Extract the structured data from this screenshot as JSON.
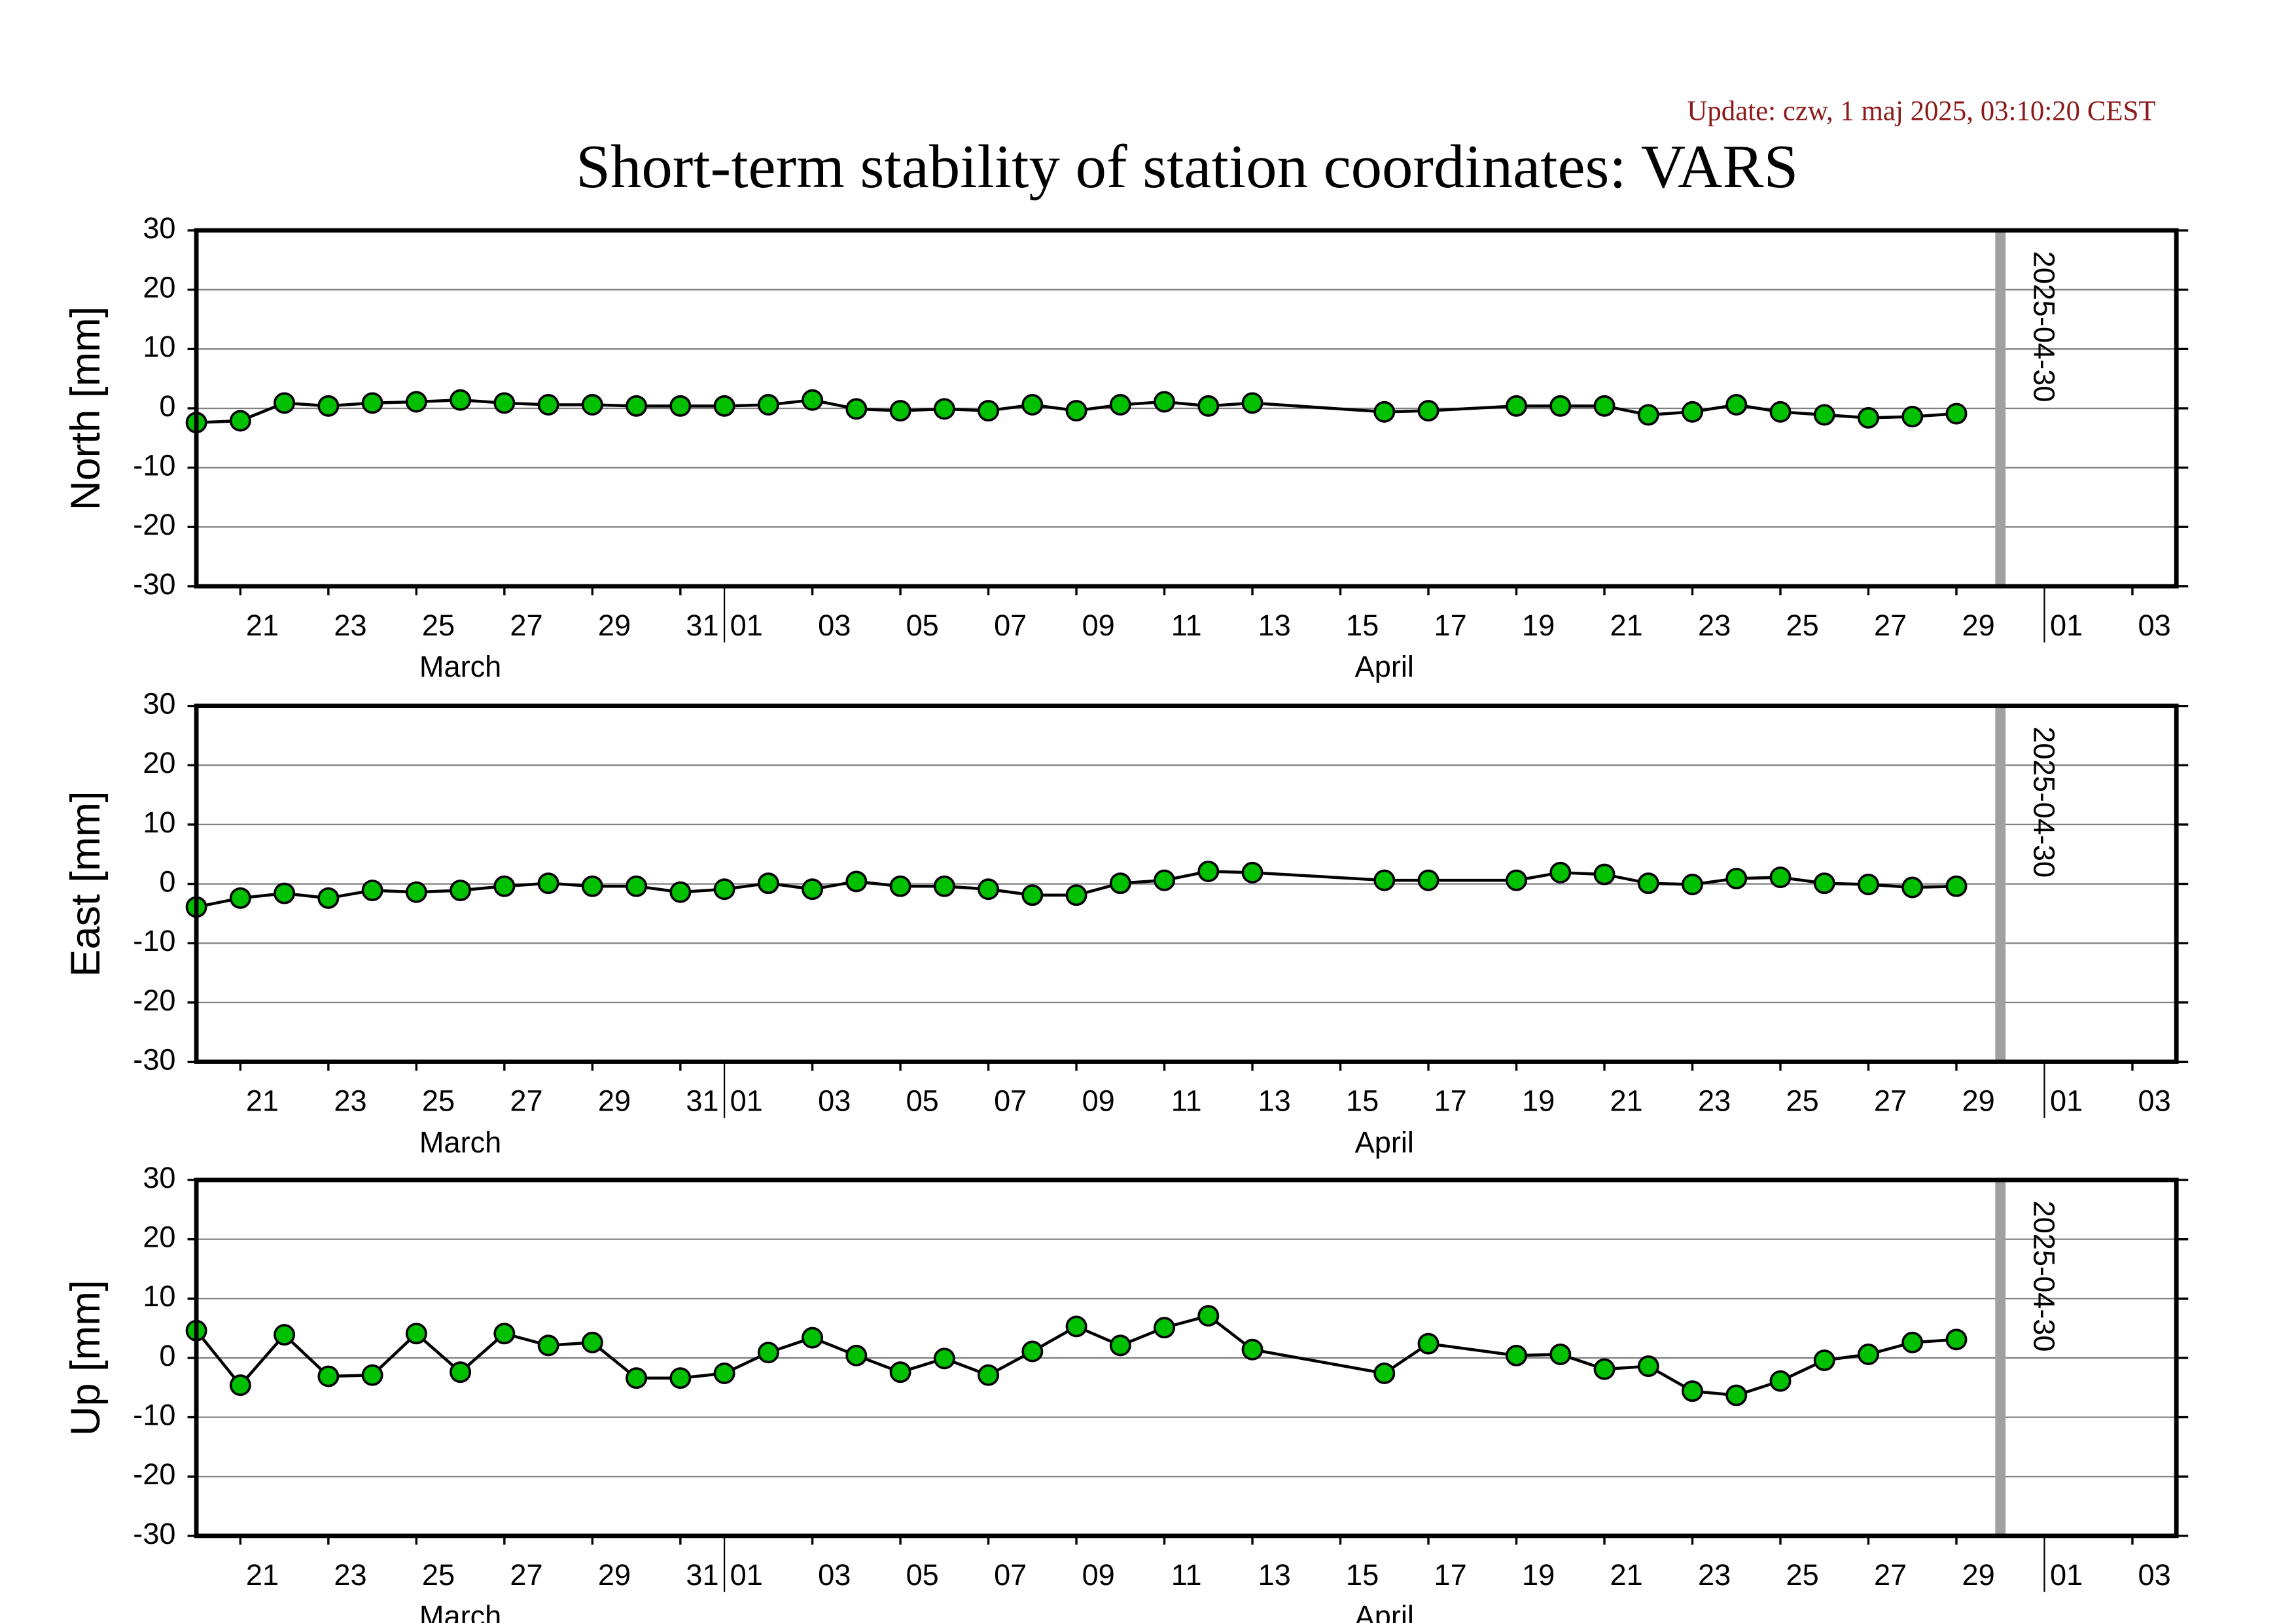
{
  "title": "Short-term stability of station coordinates: VARS",
  "update": "Update: czw, 1 maj 2025, 03:10:20 CEST",
  "chart_data": [
    {
      "type": "line",
      "ylabel": "North [mm]",
      "x": [
        "2025-03-20",
        "2025-03-21",
        "2025-03-22",
        "2025-03-23",
        "2025-03-24",
        "2025-03-25",
        "2025-03-26",
        "2025-03-27",
        "2025-03-28",
        "2025-03-29",
        "2025-03-30",
        "2025-03-31",
        "2025-04-01",
        "2025-04-02",
        "2025-04-03",
        "2025-04-04",
        "2025-04-05",
        "2025-04-06",
        "2025-04-07",
        "2025-04-08",
        "2025-04-09",
        "2025-04-10",
        "2025-04-11",
        "2025-04-12",
        "2025-04-13",
        "2025-04-16",
        "2025-04-17",
        "2025-04-19",
        "2025-04-20",
        "2025-04-21",
        "2025-04-22",
        "2025-04-23",
        "2025-04-24",
        "2025-04-25",
        "2025-04-26",
        "2025-04-27",
        "2025-04-28",
        "2025-04-29"
      ],
      "values": [
        -2.4,
        -2.1,
        0.9,
        0.4,
        0.9,
        1.1,
        1.4,
        0.9,
        0.6,
        0.6,
        0.4,
        0.4,
        0.4,
        0.6,
        1.4,
        -0.1,
        -0.4,
        -0.1,
        -0.4,
        0.6,
        -0.4,
        0.6,
        1.1,
        0.4,
        0.9,
        -0.6,
        -0.4,
        0.4,
        0.4,
        0.4,
        -1.1,
        -0.6,
        0.6,
        -0.6,
        -1.1,
        -1.6,
        -1.4,
        -0.9
      ],
      "color": "#000000",
      "marker_color": "#00c000",
      "xlim": [
        "2025-03-20",
        "2025-05-04"
      ],
      "ylim": [
        -30,
        30
      ],
      "yticks": [
        -30,
        -20,
        -10,
        0,
        10,
        20,
        30
      ],
      "grid": true,
      "xticks": [
        {
          "value": "2025-03-21",
          "label": "21"
        },
        {
          "value": "2025-03-23",
          "label": "23"
        },
        {
          "value": "2025-03-25",
          "label": "25"
        },
        {
          "value": "2025-03-27",
          "label": "27"
        },
        {
          "value": "2025-03-29",
          "label": "29"
        },
        {
          "value": "2025-03-31",
          "label": "31"
        },
        {
          "value": "2025-04-01",
          "label": "01"
        },
        {
          "value": "2025-04-03",
          "label": "03"
        },
        {
          "value": "2025-04-05",
          "label": "05"
        },
        {
          "value": "2025-04-07",
          "label": "07"
        },
        {
          "value": "2025-04-09",
          "label": "09"
        },
        {
          "value": "2025-04-11",
          "label": "11"
        },
        {
          "value": "2025-04-13",
          "label": "13"
        },
        {
          "value": "2025-04-15",
          "label": "15"
        },
        {
          "value": "2025-04-17",
          "label": "17"
        },
        {
          "value": "2025-04-19",
          "label": "19"
        },
        {
          "value": "2025-04-21",
          "label": "21"
        },
        {
          "value": "2025-04-23",
          "label": "23"
        },
        {
          "value": "2025-04-25",
          "label": "25"
        },
        {
          "value": "2025-04-27",
          "label": "27"
        },
        {
          "value": "2025-04-29",
          "label": "29"
        },
        {
          "value": "2025-05-01",
          "label": "01"
        },
        {
          "value": "2025-05-03",
          "label": "03"
        }
      ],
      "months": [
        {
          "value": "2025-03",
          "label": "March"
        },
        {
          "value": "2025-04",
          "label": "April"
        }
      ],
      "vline": "2025-04-30",
      "vline_color": "#a0a0a0"
    },
    {
      "type": "line",
      "ylabel": "East [mm]",
      "x": [
        "2025-03-20",
        "2025-03-21",
        "2025-03-22",
        "2025-03-23",
        "2025-03-24",
        "2025-03-25",
        "2025-03-26",
        "2025-03-27",
        "2025-03-28",
        "2025-03-29",
        "2025-03-30",
        "2025-03-31",
        "2025-04-01",
        "2025-04-02",
        "2025-04-03",
        "2025-04-04",
        "2025-04-05",
        "2025-04-06",
        "2025-04-07",
        "2025-04-08",
        "2025-04-09",
        "2025-04-10",
        "2025-04-11",
        "2025-04-12",
        "2025-04-13",
        "2025-04-16",
        "2025-04-17",
        "2025-04-19",
        "2025-04-20",
        "2025-04-21",
        "2025-04-22",
        "2025-04-23",
        "2025-04-24",
        "2025-04-25",
        "2025-04-26",
        "2025-04-27",
        "2025-04-28",
        "2025-04-29"
      ],
      "values": [
        -3.9,
        -2.4,
        -1.6,
        -2.4,
        -1.1,
        -1.4,
        -1.1,
        -0.4,
        0.1,
        -0.4,
        -0.4,
        -1.4,
        -0.9,
        0.1,
        -0.9,
        0.4,
        -0.4,
        -0.4,
        -0.9,
        -1.9,
        -1.9,
        0.1,
        0.6,
        2.1,
        1.9,
        0.6,
        0.6,
        0.6,
        1.9,
        1.6,
        0.1,
        -0.1,
        0.9,
        1.1,
        0.1,
        -0.1,
        -0.6,
        -0.4
      ],
      "color": "#000000",
      "marker_color": "#00c000",
      "xlim": [
        "2025-03-20",
        "2025-05-04"
      ],
      "ylim": [
        -30,
        30
      ],
      "yticks": [
        -30,
        -20,
        -10,
        0,
        10,
        20,
        30
      ],
      "grid": true,
      "xticks": [
        {
          "value": "2025-03-21",
          "label": "21"
        },
        {
          "value": "2025-03-23",
          "label": "23"
        },
        {
          "value": "2025-03-25",
          "label": "25"
        },
        {
          "value": "2025-03-27",
          "label": "27"
        },
        {
          "value": "2025-03-29",
          "label": "29"
        },
        {
          "value": "2025-03-31",
          "label": "31"
        },
        {
          "value": "2025-04-01",
          "label": "01"
        },
        {
          "value": "2025-04-03",
          "label": "03"
        },
        {
          "value": "2025-04-05",
          "label": "05"
        },
        {
          "value": "2025-04-07",
          "label": "07"
        },
        {
          "value": "2025-04-09",
          "label": "09"
        },
        {
          "value": "2025-04-11",
          "label": "11"
        },
        {
          "value": "2025-04-13",
          "label": "13"
        },
        {
          "value": "2025-04-15",
          "label": "15"
        },
        {
          "value": "2025-04-17",
          "label": "17"
        },
        {
          "value": "2025-04-19",
          "label": "19"
        },
        {
          "value": "2025-04-21",
          "label": "21"
        },
        {
          "value": "2025-04-23",
          "label": "23"
        },
        {
          "value": "2025-04-25",
          "label": "25"
        },
        {
          "value": "2025-04-27",
          "label": "27"
        },
        {
          "value": "2025-04-29",
          "label": "29"
        },
        {
          "value": "2025-05-01",
          "label": "01"
        },
        {
          "value": "2025-05-03",
          "label": "03"
        }
      ],
      "months": [
        {
          "value": "2025-03",
          "label": "March"
        },
        {
          "value": "2025-04",
          "label": "April"
        }
      ],
      "vline": "2025-04-30",
      "vline_color": "#a0a0a0"
    },
    {
      "type": "line",
      "ylabel": "Up [mm]",
      "x": [
        "2025-03-20",
        "2025-03-21",
        "2025-03-22",
        "2025-03-23",
        "2025-03-24",
        "2025-03-25",
        "2025-03-26",
        "2025-03-27",
        "2025-03-28",
        "2025-03-29",
        "2025-03-30",
        "2025-03-31",
        "2025-04-01",
        "2025-04-02",
        "2025-04-03",
        "2025-04-04",
        "2025-04-05",
        "2025-04-06",
        "2025-04-07",
        "2025-04-08",
        "2025-04-09",
        "2025-04-10",
        "2025-04-11",
        "2025-04-12",
        "2025-04-13",
        "2025-04-16",
        "2025-04-17",
        "2025-04-19",
        "2025-04-20",
        "2025-04-21",
        "2025-04-22",
        "2025-04-23",
        "2025-04-24",
        "2025-04-25",
        "2025-04-26",
        "2025-04-27",
        "2025-04-28",
        "2025-04-29"
      ],
      "values": [
        4.6,
        -4.6,
        3.9,
        -3.1,
        -2.9,
        4.1,
        -2.4,
        4.1,
        2.1,
        2.6,
        -3.4,
        -3.4,
        -2.6,
        0.9,
        3.4,
        0.4,
        -2.4,
        -0.1,
        -2.9,
        1.1,
        5.3,
        2.1,
        5.1,
        7.1,
        1.4,
        -2.6,
        2.4,
        0.4,
        0.6,
        -1.9,
        -1.4,
        -5.6,
        -6.3,
        -3.9,
        -0.4,
        0.6,
        2.6,
        3.1
      ],
      "color": "#000000",
      "marker_color": "#00c000",
      "xlim": [
        "2025-03-20",
        "2025-05-04"
      ],
      "ylim": [
        -30,
        30
      ],
      "yticks": [
        -30,
        -20,
        -10,
        0,
        10,
        20,
        30
      ],
      "grid": true,
      "xticks": [
        {
          "value": "2025-03-21",
          "label": "21"
        },
        {
          "value": "2025-03-23",
          "label": "23"
        },
        {
          "value": "2025-03-25",
          "label": "25"
        },
        {
          "value": "2025-03-27",
          "label": "27"
        },
        {
          "value": "2025-03-29",
          "label": "29"
        },
        {
          "value": "2025-03-31",
          "label": "31"
        },
        {
          "value": "2025-04-01",
          "label": "01"
        },
        {
          "value": "2025-04-03",
          "label": "03"
        },
        {
          "value": "2025-04-05",
          "label": "05"
        },
        {
          "value": "2025-04-07",
          "label": "07"
        },
        {
          "value": "2025-04-09",
          "label": "09"
        },
        {
          "value": "2025-04-11",
          "label": "11"
        },
        {
          "value": "2025-04-13",
          "label": "13"
        },
        {
          "value": "2025-04-15",
          "label": "15"
        },
        {
          "value": "2025-04-17",
          "label": "17"
        },
        {
          "value": "2025-04-19",
          "label": "19"
        },
        {
          "value": "2025-04-21",
          "label": "21"
        },
        {
          "value": "2025-04-23",
          "label": "23"
        },
        {
          "value": "2025-04-25",
          "label": "25"
        },
        {
          "value": "2025-04-27",
          "label": "27"
        },
        {
          "value": "2025-04-29",
          "label": "29"
        },
        {
          "value": "2025-05-01",
          "label": "01"
        },
        {
          "value": "2025-05-03",
          "label": "03"
        }
      ],
      "months": [
        {
          "value": "2025-03",
          "label": "March"
        },
        {
          "value": "2025-04",
          "label": "April"
        }
      ],
      "vline": "2025-04-30",
      "vline_color": "#a0a0a0"
    }
  ]
}
